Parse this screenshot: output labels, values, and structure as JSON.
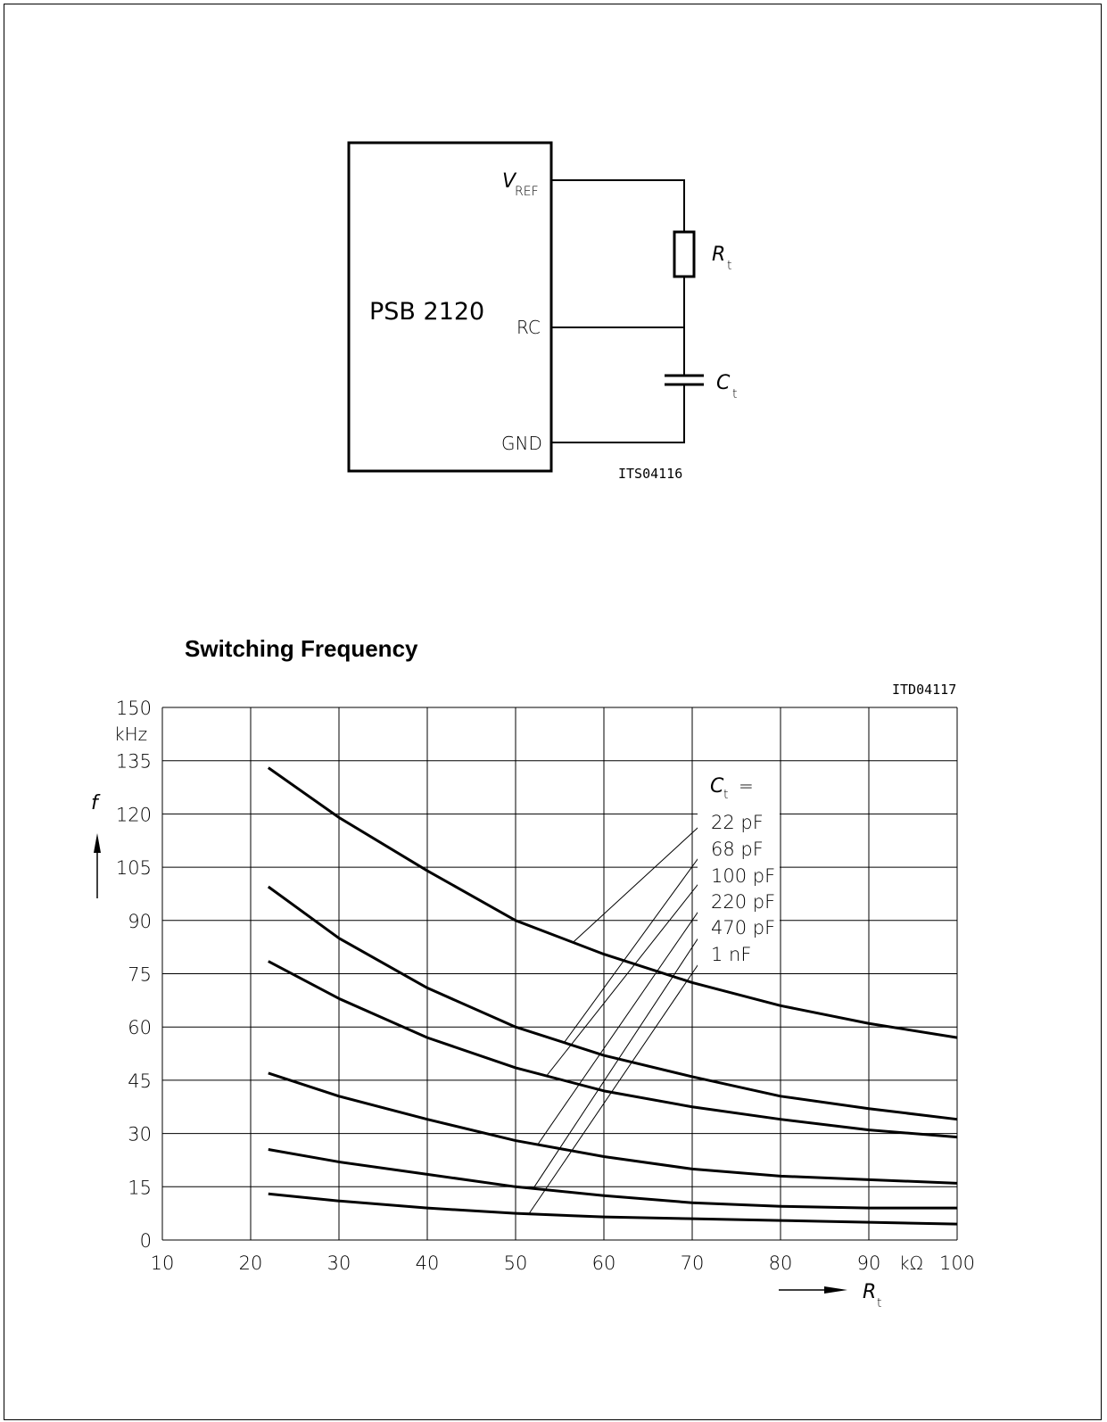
{
  "circuit": {
    "ic_name": "PSB 2120",
    "pin_vref_main": "V",
    "pin_vref_sub": "REF",
    "pin_rc": "RC",
    "pin_gnd": "GND",
    "resistor_main": "R",
    "resistor_sub": "t",
    "capacitor_main": "C",
    "capacitor_sub": "t",
    "figure_id": "ITS04116"
  },
  "section_title": "Switching Frequency",
  "chart_data": {
    "type": "line",
    "figure_id": "ITD04117",
    "x_label_main": "R",
    "x_label_sub": "t",
    "x_unit": "kΩ",
    "y_label": "f",
    "y_unit": "kHz",
    "xlim": [
      10,
      100
    ],
    "ylim": [
      0,
      150
    ],
    "x_ticks": [
      10,
      20,
      30,
      40,
      50,
      60,
      70,
      80,
      90,
      100
    ],
    "y_ticks": [
      0,
      15,
      30,
      45,
      60,
      75,
      90,
      105,
      120,
      135,
      150
    ],
    "grid": true,
    "legend_header_main": "C",
    "legend_header_sub": "t",
    "legend_header_eq": "=",
    "series": [
      {
        "name": "22 pF",
        "x": [
          22,
          30,
          40,
          50,
          60,
          70,
          80,
          90,
          100
        ],
        "y": [
          133,
          119,
          104,
          90,
          80.5,
          72.5,
          66,
          61,
          57
        ]
      },
      {
        "name": "68 pF",
        "x": [
          22,
          30,
          40,
          50,
          60,
          70,
          80,
          90,
          100
        ],
        "y": [
          99.5,
          85,
          71,
          60,
          52,
          46,
          40.5,
          37,
          34
        ]
      },
      {
        "name": "100 pF",
        "x": [
          22,
          30,
          40,
          50,
          60,
          70,
          80,
          90,
          100
        ],
        "y": [
          78.5,
          68,
          57,
          48.5,
          42,
          37.5,
          34,
          31,
          29
        ]
      },
      {
        "name": "220 pF",
        "x": [
          22,
          30,
          40,
          50,
          60,
          70,
          80,
          90,
          100
        ],
        "y": [
          47,
          40.5,
          34,
          28,
          23.5,
          20,
          18,
          17,
          16
        ]
      },
      {
        "name": "470 pF",
        "x": [
          22,
          30,
          40,
          50,
          60,
          70,
          80,
          90,
          100
        ],
        "y": [
          25.5,
          22,
          18.5,
          15,
          12.5,
          10.5,
          9.5,
          9,
          9
        ]
      },
      {
        "name": "1 nF",
        "x": [
          22,
          30,
          40,
          50,
          60,
          70,
          80,
          90,
          100
        ],
        "y": [
          13,
          11,
          9,
          7.5,
          6.5,
          6,
          5.5,
          5,
          4.5
        ]
      }
    ]
  }
}
